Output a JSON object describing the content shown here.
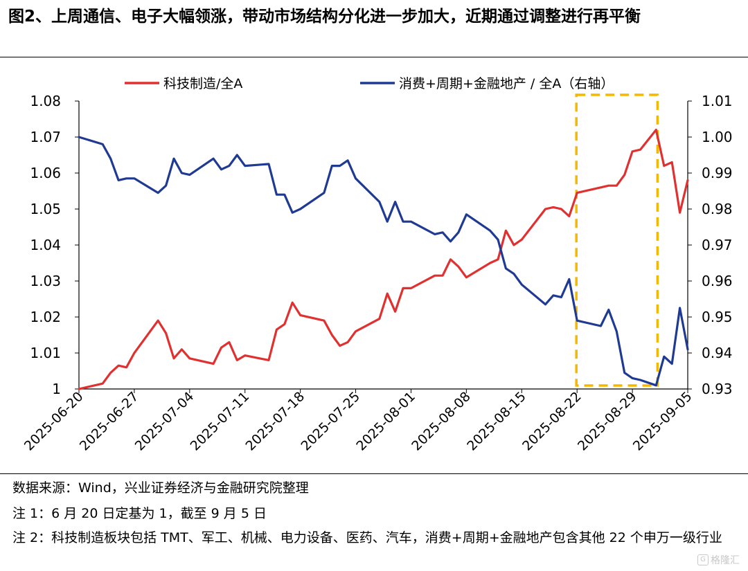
{
  "header": {
    "title": "图2、上周通信、电子大幅领涨，带动市场结构分化进一步加大，近期通过调整进行再平衡"
  },
  "footer": {
    "source": "数据来源：Wind，兴业证券经济与金融研究院整理",
    "note1": "注 1：6 月 20 日定基为 1，截至 9 月 5 日",
    "note2": "注 2：科技制造板块包括 TMT、军工、机械、电力设备、医药、汽车，消费+周期+金融地产包含其他 22 个申万一级行业"
  },
  "watermark": {
    "icon": "gelonghui-logo-icon",
    "text": "格隆汇"
  },
  "chart_data": {
    "type": "line",
    "x_tick_labels": [
      "2025-06-20",
      "2025-06-27",
      "2025-07-04",
      "2025-07-11",
      "2025-07-18",
      "2025-07-25",
      "2025-08-01",
      "2025-08-08",
      "2025-08-15",
      "2025-08-22",
      "2025-08-29",
      "2025-09-05"
    ],
    "y_left": {
      "ylim": [
        1.0,
        1.08
      ],
      "ticks": [
        "1",
        "1.01",
        "1.02",
        "1.03",
        "1.04",
        "1.05",
        "1.06",
        "1.07",
        "1.08"
      ]
    },
    "y_right": {
      "ylim": [
        0.93,
        1.01
      ],
      "ticks": [
        "0.93",
        "0.94",
        "0.95",
        "0.96",
        "0.97",
        "0.98",
        "0.99",
        "1.00",
        "1.01"
      ]
    },
    "highlight": {
      "x_range": [
        "2025-08-22",
        "2025-09-01"
      ],
      "color": "#f5b800"
    },
    "series": [
      {
        "name": "科技制造/全A",
        "axis": "left",
        "color": "#e03030",
        "points": [
          [
            "2025-06-20",
            1.0
          ],
          [
            "2025-06-23",
            1.0015
          ],
          [
            "2025-06-24",
            1.0045
          ],
          [
            "2025-06-25",
            1.0065
          ],
          [
            "2025-06-26",
            1.006
          ],
          [
            "2025-06-27",
            1.01
          ],
          [
            "2025-06-30",
            1.019
          ],
          [
            "2025-07-01",
            1.0155
          ],
          [
            "2025-07-02",
            1.0085
          ],
          [
            "2025-07-03",
            1.011
          ],
          [
            "2025-07-04",
            1.0085
          ],
          [
            "2025-07-07",
            1.007
          ],
          [
            "2025-07-08",
            1.0115
          ],
          [
            "2025-07-09",
            1.013
          ],
          [
            "2025-07-10",
            1.008
          ],
          [
            "2025-07-11",
            1.0093
          ],
          [
            "2025-07-14",
            1.008
          ],
          [
            "2025-07-15",
            1.0165
          ],
          [
            "2025-07-16",
            1.018
          ],
          [
            "2025-07-17",
            1.024
          ],
          [
            "2025-07-18",
            1.0205
          ],
          [
            "2025-07-21",
            1.019
          ],
          [
            "2025-07-22",
            1.015
          ],
          [
            "2025-07-23",
            1.012
          ],
          [
            "2025-07-24",
            1.013
          ],
          [
            "2025-07-25",
            1.016
          ],
          [
            "2025-07-28",
            1.0195
          ],
          [
            "2025-07-29",
            1.0265
          ],
          [
            "2025-07-30",
            1.0215
          ],
          [
            "2025-07-31",
            1.028
          ],
          [
            "2025-08-01",
            1.028
          ],
          [
            "2025-08-04",
            1.0315
          ],
          [
            "2025-08-05",
            1.0315
          ],
          [
            "2025-08-06",
            1.036
          ],
          [
            "2025-08-07",
            1.034
          ],
          [
            "2025-08-08",
            1.031
          ],
          [
            "2025-08-11",
            1.035
          ],
          [
            "2025-08-12",
            1.036
          ],
          [
            "2025-08-13",
            1.044
          ],
          [
            "2025-08-14",
            1.04
          ],
          [
            "2025-08-15",
            1.0415
          ],
          [
            "2025-08-18",
            1.05
          ],
          [
            "2025-08-19",
            1.0505
          ],
          [
            "2025-08-20",
            1.05
          ],
          [
            "2025-08-21",
            1.048
          ],
          [
            "2025-08-22",
            1.0545
          ],
          [
            "2025-08-25",
            1.056
          ],
          [
            "2025-08-26",
            1.0565
          ],
          [
            "2025-08-27",
            1.0565
          ],
          [
            "2025-08-28",
            1.0595
          ],
          [
            "2025-08-29",
            1.066
          ],
          [
            "2025-08-30",
            1.0665
          ],
          [
            "2025-09-01",
            1.072
          ],
          [
            "2025-09-02",
            1.062
          ],
          [
            "2025-09-03",
            1.063
          ],
          [
            "2025-09-04",
            1.049
          ],
          [
            "2025-09-05",
            1.058
          ]
        ]
      },
      {
        "name": "消费+周期+金融地产 / 全A（右轴）",
        "axis": "right",
        "color": "#1f3a93",
        "points": [
          [
            "2025-06-20",
            1.0
          ],
          [
            "2025-06-23",
            0.998
          ],
          [
            "2025-06-24",
            0.994
          ],
          [
            "2025-06-25",
            0.988
          ],
          [
            "2025-06-26",
            0.9885
          ],
          [
            "2025-06-27",
            0.9885
          ],
          [
            "2025-06-30",
            0.9845
          ],
          [
            "2025-07-01",
            0.9865
          ],
          [
            "2025-07-02",
            0.994
          ],
          [
            "2025-07-03",
            0.99
          ],
          [
            "2025-07-04",
            0.9895
          ],
          [
            "2025-07-07",
            0.994
          ],
          [
            "2025-07-08",
            0.991
          ],
          [
            "2025-07-09",
            0.992
          ],
          [
            "2025-07-10",
            0.995
          ],
          [
            "2025-07-11",
            0.992
          ],
          [
            "2025-07-14",
            0.9925
          ],
          [
            "2025-07-15",
            0.984
          ],
          [
            "2025-07-16",
            0.984
          ],
          [
            "2025-07-17",
            0.979
          ],
          [
            "2025-07-18",
            0.98
          ],
          [
            "2025-07-21",
            0.9845
          ],
          [
            "2025-07-22",
            0.992
          ],
          [
            "2025-07-23",
            0.992
          ],
          [
            "2025-07-24",
            0.9935
          ],
          [
            "2025-07-25",
            0.9885
          ],
          [
            "2025-07-28",
            0.982
          ],
          [
            "2025-07-29",
            0.9765
          ],
          [
            "2025-07-30",
            0.982
          ],
          [
            "2025-07-31",
            0.9765
          ],
          [
            "2025-08-01",
            0.9765
          ],
          [
            "2025-08-04",
            0.973
          ],
          [
            "2025-08-05",
            0.9735
          ],
          [
            "2025-08-06",
            0.971
          ],
          [
            "2025-08-07",
            0.9735
          ],
          [
            "2025-08-08",
            0.9785
          ],
          [
            "2025-08-11",
            0.974
          ],
          [
            "2025-08-12",
            0.9715
          ],
          [
            "2025-08-13",
            0.9635
          ],
          [
            "2025-08-14",
            0.962
          ],
          [
            "2025-08-15",
            0.959
          ],
          [
            "2025-08-18",
            0.9535
          ],
          [
            "2025-08-19",
            0.956
          ],
          [
            "2025-08-20",
            0.9555
          ],
          [
            "2025-08-21",
            0.9605
          ],
          [
            "2025-08-22",
            0.949
          ],
          [
            "2025-08-25",
            0.9475
          ],
          [
            "2025-08-26",
            0.952
          ],
          [
            "2025-08-27",
            0.946
          ],
          [
            "2025-08-28",
            0.9345
          ],
          [
            "2025-08-29",
            0.933
          ],
          [
            "2025-08-30",
            0.9325
          ],
          [
            "2025-09-01",
            0.931
          ],
          [
            "2025-09-02",
            0.939
          ],
          [
            "2025-09-03",
            0.937
          ],
          [
            "2025-09-04",
            0.9525
          ],
          [
            "2025-09-05",
            0.941
          ]
        ]
      }
    ]
  }
}
